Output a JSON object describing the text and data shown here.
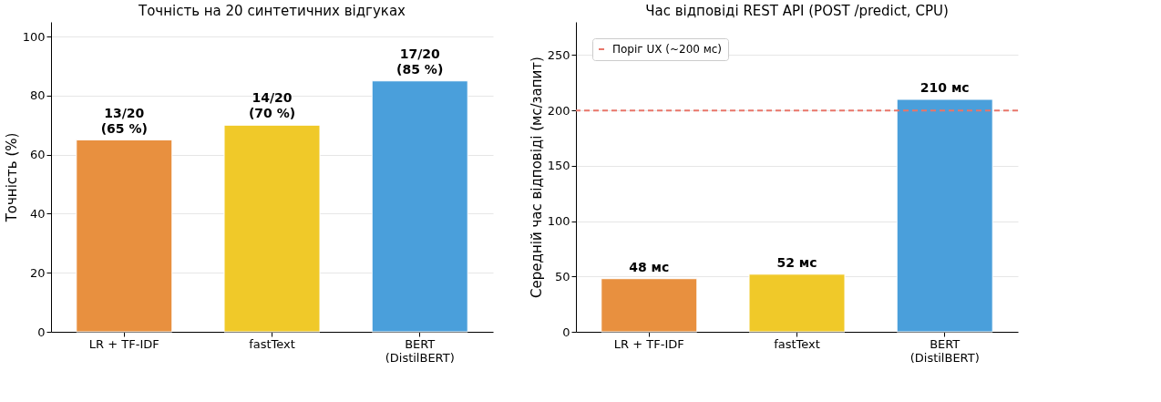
{
  "chart_data": [
    {
      "type": "bar",
      "title": "Точність на 20 синтетичних відгуках",
      "ylabel": "Точність (%)",
      "categories": [
        "LR + TF-IDF",
        "fastText",
        "BERT\n(DistilBERT)"
      ],
      "values": [
        65,
        70,
        85
      ],
      "colors": [
        "#e8903f",
        "#f0c929",
        "#4a9fdb"
      ],
      "value_labels": [
        "13/20\n(65 %)",
        "14/20\n(70 %)",
        "17/20\n(85 %)"
      ],
      "ylim": [
        0,
        105
      ],
      "yticks": [
        0,
        20,
        40,
        60,
        80,
        100
      ],
      "grid": "y"
    },
    {
      "type": "bar",
      "title": "Час відповіді REST API (POST /predict, CPU)",
      "ylabel": "Середній час відповіді (мс/запит)",
      "categories": [
        "LR + TF-IDF",
        "fastText",
        "BERT\n(DistilBERT)"
      ],
      "values": [
        48,
        52,
        210
      ],
      "colors": [
        "#e8903f",
        "#f0c929",
        "#4a9fdb"
      ],
      "value_labels": [
        "48 мс",
        "52 мс",
        "210 мс"
      ],
      "ylim": [
        0,
        280
      ],
      "yticks": [
        0,
        50,
        100,
        150,
        200,
        250
      ],
      "grid": "y",
      "legend": "top left",
      "ref_lines": [
        {
          "axis": "y",
          "value": 200,
          "label": "Поріг UX (~200 мс)",
          "color": "#e8766a",
          "line_style": "dashed"
        }
      ]
    }
  ]
}
